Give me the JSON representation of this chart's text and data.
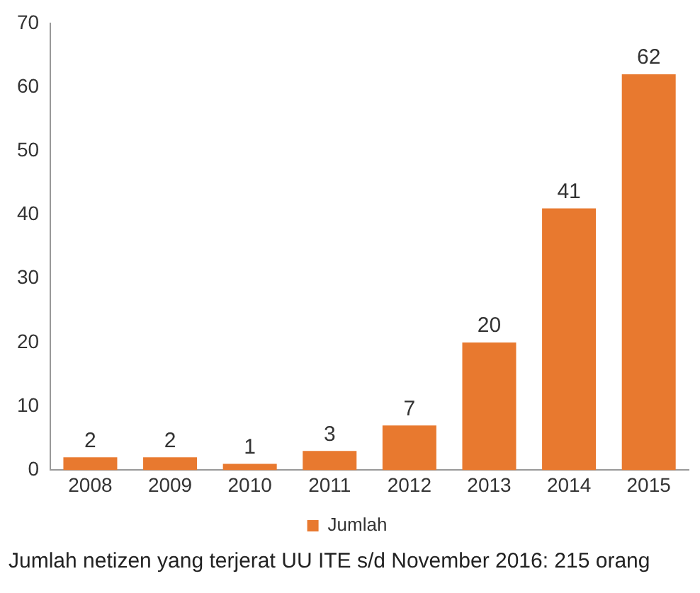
{
  "chart_data": {
    "type": "bar",
    "categories": [
      "2008",
      "2009",
      "2010",
      "2011",
      "2012",
      "2013",
      "2014",
      "2015"
    ],
    "series": [
      {
        "name": "Jumlah",
        "color": "#e8792f",
        "values": [
          2,
          2,
          1,
          3,
          7,
          20,
          41,
          62
        ]
      }
    ],
    "ylim": [
      0,
      70
    ],
    "yticks": [
      0,
      10,
      20,
      30,
      40,
      50,
      60,
      70
    ],
    "grid": false,
    "legend": "bottom",
    "data_labels": true,
    "annotations": [
      "Jumlah netizen yang terjerat UU ITE s/d November 2016: 215 orang"
    ]
  }
}
